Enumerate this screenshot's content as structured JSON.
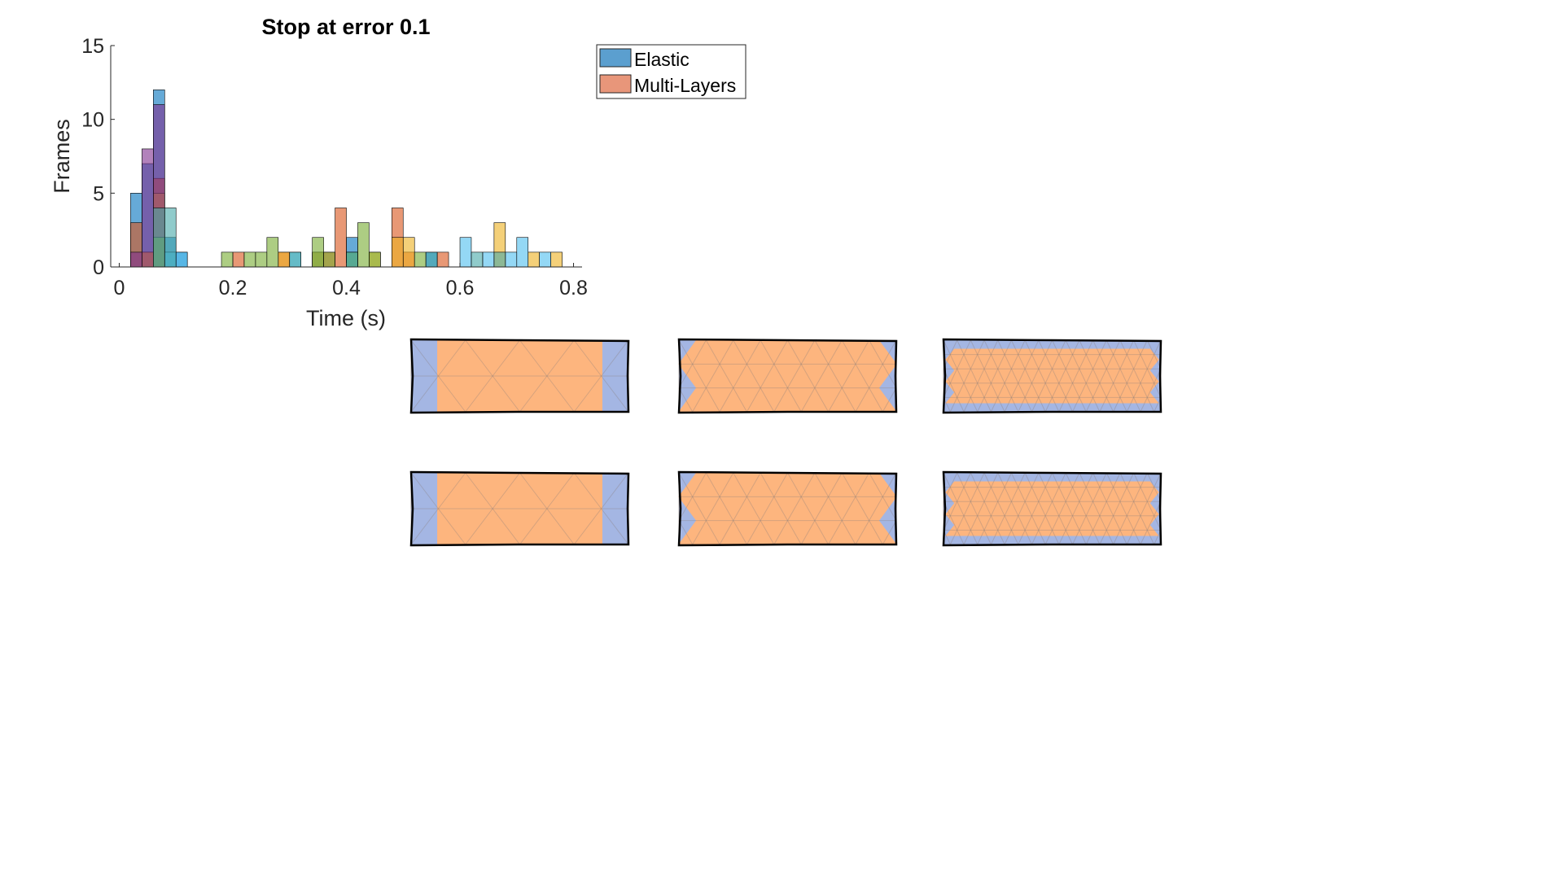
{
  "chart_data": {
    "type": "bar",
    "subtype": "overlaid-histogram",
    "title": "Stop at error 0.1",
    "xlabel": "Time (s)",
    "ylabel": "Frames",
    "xlim": [
      -0.015,
      0.815
    ],
    "ylim": [
      0,
      15
    ],
    "xticks": [
      0,
      0.2,
      0.4,
      0.6,
      0.8
    ],
    "xtick_labels": [
      "0",
      "0.2",
      "0.4",
      "0.6",
      "0.8"
    ],
    "yticks": [
      0,
      5,
      10,
      15
    ],
    "ytick_labels": [
      "0",
      "5",
      "10",
      "15"
    ],
    "bin_width": 0.02,
    "grid": false,
    "legend_position": "top-right",
    "legend": [
      {
        "label": "Elastic",
        "color": "#5b9fcf"
      },
      {
        "label": "Multi-Layers",
        "color": "#e8967a"
      }
    ],
    "series": [
      {
        "name": "Elastic",
        "color": "#0072bd",
        "bins": [
          [
            0.03,
            5
          ],
          [
            0.05,
            7
          ],
          [
            0.07,
            12
          ],
          [
            0.09,
            2
          ],
          [
            0.11,
            1
          ],
          [
            0.35,
            1
          ],
          [
            0.41,
            2
          ],
          [
            0.55,
            1
          ]
        ]
      },
      {
        "name": "Multi-Layers",
        "color": "#d95319",
        "bins": [
          [
            0.03,
            3
          ],
          [
            0.05,
            1
          ],
          [
            0.07,
            6
          ],
          [
            0.21,
            1
          ],
          [
            0.29,
            1
          ],
          [
            0.37,
            1
          ],
          [
            0.39,
            4
          ],
          [
            0.49,
            4
          ],
          [
            0.51,
            1
          ],
          [
            0.57,
            1
          ]
        ]
      },
      {
        "color": "#edb120",
        "bins": [
          [
            0.05,
            1
          ],
          [
            0.07,
            5
          ],
          [
            0.29,
            1
          ],
          [
            0.35,
            1
          ],
          [
            0.45,
            1
          ],
          [
            0.49,
            2
          ],
          [
            0.51,
            2
          ],
          [
            0.67,
            3
          ],
          [
            0.73,
            1
          ],
          [
            0.77,
            1
          ]
        ]
      },
      {
        "color": "#7e2f8e",
        "bins": [
          [
            0.03,
            1
          ],
          [
            0.05,
            8
          ],
          [
            0.07,
            11
          ]
        ]
      },
      {
        "color": "#77ac30",
        "bins": [
          [
            0.07,
            2
          ],
          [
            0.19,
            1
          ],
          [
            0.23,
            1
          ],
          [
            0.25,
            1
          ],
          [
            0.27,
            2
          ],
          [
            0.35,
            2
          ],
          [
            0.37,
            1
          ],
          [
            0.41,
            1
          ],
          [
            0.43,
            3
          ],
          [
            0.45,
            1
          ],
          [
            0.53,
            1
          ]
        ]
      },
      {
        "color": "#4dbeee",
        "bins": [
          [
            0.09,
            1
          ],
          [
            0.11,
            1
          ],
          [
            0.31,
            1
          ],
          [
            0.61,
            2
          ],
          [
            0.65,
            1
          ],
          [
            0.69,
            1
          ],
          [
            0.71,
            2
          ],
          [
            0.75,
            1
          ]
        ]
      },
      {
        "color": "#46a8a8",
        "bins": [
          [
            0.07,
            4
          ],
          [
            0.09,
            4
          ],
          [
            0.31,
            1
          ],
          [
            0.41,
            1
          ],
          [
            0.55,
            1
          ],
          [
            0.63,
            1
          ],
          [
            0.67,
            1
          ]
        ]
      }
    ]
  },
  "meshes": {
    "outer_color": "#a4b6e3",
    "inner_color": "#fdb57e",
    "panels": [
      {
        "name": "mesh-coarse-top",
        "cols": 4
      },
      {
        "name": "mesh-medium-top",
        "cols": 8
      },
      {
        "name": "mesh-fine-top",
        "cols": 16
      },
      {
        "name": "mesh-coarse-bottom",
        "cols": 4
      },
      {
        "name": "mesh-medium-bottom",
        "cols": 8
      },
      {
        "name": "mesh-fine-bottom",
        "cols": 16
      }
    ]
  }
}
